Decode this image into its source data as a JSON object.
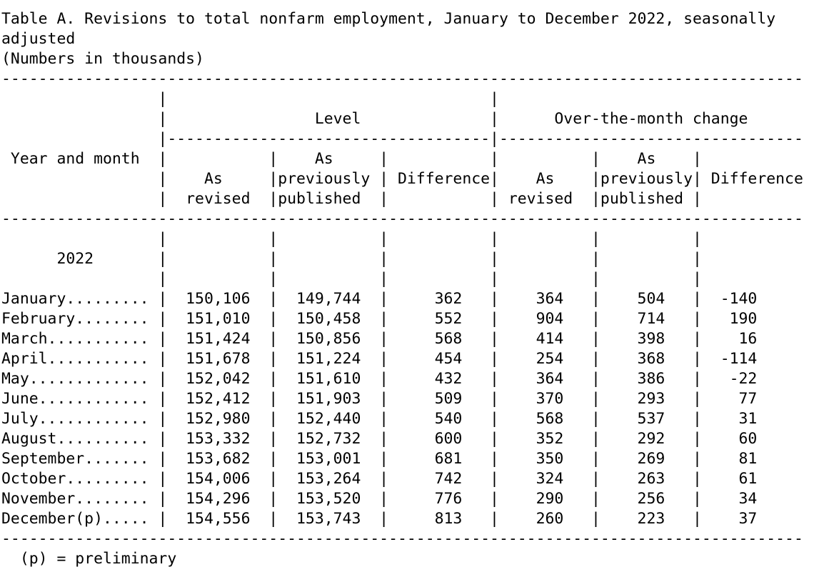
{
  "title_lines": [
    "Table A. Revisions to total nonfarm employment, January to December 2022, seasonally",
    "adjusted",
    "(Numbers in thousands)"
  ],
  "footnote": "(p) = preliminary",
  "table": {
    "stub_header": "Year and month",
    "group_headers": {
      "level": "Level",
      "otm": "Over-the-month change"
    },
    "col_headers": {
      "as": "As",
      "revised": "revised",
      "previously": "previously",
      "published": "published",
      "difference": "Difference"
    },
    "year_label": "2022",
    "rows": [
      {
        "month": "January",
        "level_revised": "150,106",
        "level_published": "149,744",
        "level_diff": "362",
        "otm_revised": "364",
        "otm_published": "504",
        "otm_diff": "-140"
      },
      {
        "month": "February",
        "level_revised": "151,010",
        "level_published": "150,458",
        "level_diff": "552",
        "otm_revised": "904",
        "otm_published": "714",
        "otm_diff": "190"
      },
      {
        "month": "March",
        "level_revised": "151,424",
        "level_published": "150,856",
        "level_diff": "568",
        "otm_revised": "414",
        "otm_published": "398",
        "otm_diff": "16"
      },
      {
        "month": "April",
        "level_revised": "151,678",
        "level_published": "151,224",
        "level_diff": "454",
        "otm_revised": "254",
        "otm_published": "368",
        "otm_diff": "-114"
      },
      {
        "month": "May",
        "level_revised": "152,042",
        "level_published": "151,610",
        "level_diff": "432",
        "otm_revised": "364",
        "otm_published": "386",
        "otm_diff": "-22"
      },
      {
        "month": "June",
        "level_revised": "152,412",
        "level_published": "151,903",
        "level_diff": "509",
        "otm_revised": "370",
        "otm_published": "293",
        "otm_diff": "77"
      },
      {
        "month": "July",
        "level_revised": "152,980",
        "level_published": "152,440",
        "level_diff": "540",
        "otm_revised": "568",
        "otm_published": "537",
        "otm_diff": "31"
      },
      {
        "month": "August",
        "level_revised": "153,332",
        "level_published": "152,732",
        "level_diff": "600",
        "otm_revised": "352",
        "otm_published": "292",
        "otm_diff": "60"
      },
      {
        "month": "September",
        "level_revised": "153,682",
        "level_published": "153,001",
        "level_diff": "681",
        "otm_revised": "350",
        "otm_published": "269",
        "otm_diff": "81"
      },
      {
        "month": "October",
        "level_revised": "154,006",
        "level_published": "153,264",
        "level_diff": "742",
        "otm_revised": "324",
        "otm_published": "263",
        "otm_diff": "61"
      },
      {
        "month": "November",
        "level_revised": "154,296",
        "level_published": "153,520",
        "level_diff": "776",
        "otm_revised": "290",
        "otm_published": "256",
        "otm_diff": "34"
      },
      {
        "month": "December(p)",
        "level_revised": "154,556",
        "level_published": "153,743",
        "level_diff": "813",
        "otm_revised": "260",
        "otm_published": "223",
        "otm_diff": "37"
      }
    ]
  }
}
